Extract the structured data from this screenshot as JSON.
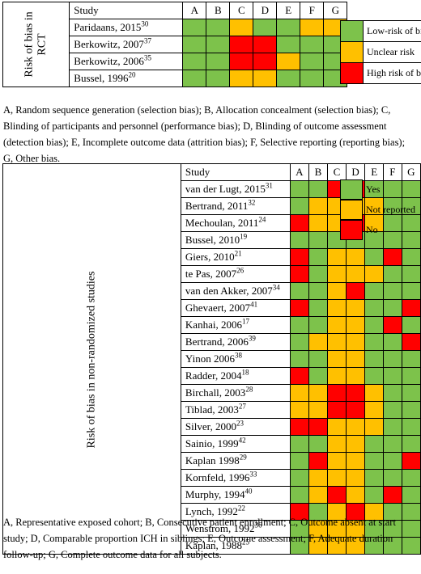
{
  "colors": {
    "green": "#7DC24B",
    "yellow": "#FFC000",
    "red": "#FF0000"
  },
  "rct": {
    "side_label_line1": "Risk of bias in",
    "side_label_line2": "RCT",
    "header": [
      "Study",
      "A",
      "B",
      "C",
      "D",
      "E",
      "F",
      "G"
    ],
    "rows": [
      {
        "study": "Paridaans, 2015",
        "ref": "30",
        "ratings": [
          "g",
          "g",
          "y",
          "g",
          "g",
          "y",
          "y"
        ]
      },
      {
        "study": "Berkowitz, 2007",
        "ref": "37",
        "ratings": [
          "g",
          "g",
          "r",
          "r",
          "g",
          "g",
          "g"
        ]
      },
      {
        "study": "Berkowitz, 2006",
        "ref": "35",
        "ratings": [
          "g",
          "g",
          "r",
          "r",
          "y",
          "g",
          "g"
        ]
      },
      {
        "study": "Bussel, 1996",
        "ref": "20",
        "ratings": [
          "g",
          "g",
          "y",
          "y",
          "g",
          "g",
          "g"
        ]
      }
    ],
    "legend": [
      {
        "label": "Low-risk of bias",
        "color": "g"
      },
      {
        "label": "Unclear risk",
        "color": "y"
      },
      {
        "label": "High risk of bias",
        "color": "r"
      }
    ],
    "caption": "A, Random sequence generation (selection bias); B, Allocation concealment (selection bias); C, Blinding of participants and personnel (performance bias); D, Blinding of outcome assessment (detection bias); E, Incomplete outcome data (attrition bias); F, Selective reporting (reporting bias); G, Other bias."
  },
  "nrs": {
    "side_label": "Risk of bias in non-randomized studies",
    "header": [
      "Study",
      "A",
      "B",
      "C",
      "D",
      "E",
      "F",
      "G"
    ],
    "rows": [
      {
        "study": "van der Lugt, 2015",
        "ref": "31",
        "ratings": [
          "g",
          "g",
          "r",
          "r",
          "g",
          "g",
          "g"
        ]
      },
      {
        "study": "Bertrand, 2011",
        "ref": "32",
        "ratings": [
          "g",
          "y",
          "y",
          "y",
          "y",
          "g",
          "g"
        ]
      },
      {
        "study": "Mechoulan, 2011",
        "ref": "24",
        "ratings": [
          "r",
          "y",
          "y",
          "r",
          "y",
          "g",
          "g"
        ]
      },
      {
        "study": "Bussel, 2010",
        "ref": "19",
        "ratings": [
          "g",
          "g",
          "g",
          "g",
          "g",
          "g",
          "g"
        ]
      },
      {
        "study": "Giers, 2010",
        "ref": "21",
        "ratings": [
          "r",
          "g",
          "y",
          "y",
          "g",
          "r",
          "g"
        ]
      },
      {
        "study": "te Pas, 2007",
        "ref": "26",
        "ratings": [
          "r",
          "g",
          "y",
          "y",
          "y",
          "g",
          "g"
        ]
      },
      {
        "study": "van den Akker, 2007",
        "ref": "34",
        "ratings": [
          "g",
          "g",
          "y",
          "r",
          "g",
          "g",
          "g"
        ]
      },
      {
        "study": "Ghevaert, 2007",
        "ref": "41",
        "ratings": [
          "r",
          "g",
          "y",
          "y",
          "g",
          "g",
          "r"
        ]
      },
      {
        "study": "Kanhai, 2006",
        "ref": "17",
        "ratings": [
          "g",
          "g",
          "y",
          "y",
          "g",
          "r",
          "g"
        ]
      },
      {
        "study": "Bertrand, 2006",
        "ref": "39",
        "ratings": [
          "g",
          "y",
          "y",
          "y",
          "g",
          "g",
          "r"
        ]
      },
      {
        "study": "Yinon 2006",
        "ref": "38",
        "ratings": [
          "g",
          "g",
          "y",
          "y",
          "g",
          "g",
          "g"
        ]
      },
      {
        "study": "Radder, 2004",
        "ref": "18",
        "ratings": [
          "r",
          "g",
          "y",
          "y",
          "g",
          "g",
          "g"
        ]
      },
      {
        "study": "Birchall, 2003",
        "ref": "28",
        "ratings": [
          "y",
          "y",
          "r",
          "r",
          "y",
          "g",
          "g"
        ]
      },
      {
        "study": "Tiblad, 2003",
        "ref": "27",
        "ratings": [
          "y",
          "y",
          "r",
          "r",
          "y",
          "g",
          "g"
        ]
      },
      {
        "study": "Silver, 2000",
        "ref": "23",
        "ratings": [
          "r",
          "r",
          "y",
          "y",
          "y",
          "g",
          "g"
        ]
      },
      {
        "study": "Sainio, 1999",
        "ref": "42",
        "ratings": [
          "g",
          "g",
          "y",
          "y",
          "g",
          "g",
          "g"
        ]
      },
      {
        "study": "Kaplan 1998",
        "ref": "29",
        "ratings": [
          "g",
          "r",
          "y",
          "y",
          "g",
          "g",
          "r"
        ]
      },
      {
        "study": "Kornfeld, 1996",
        "ref": "33",
        "ratings": [
          "g",
          "y",
          "y",
          "y",
          "g",
          "g",
          "g"
        ]
      },
      {
        "study": "Murphy, 1994",
        "ref": "40",
        "ratings": [
          "g",
          "y",
          "r",
          "y",
          "g",
          "r",
          "g"
        ]
      },
      {
        "study": "Lynch, 1992",
        "ref": "22",
        "ratings": [
          "r",
          "g",
          "y",
          "r",
          "y",
          "g",
          "g"
        ]
      },
      {
        "study": "Wenstrom, 1992",
        "ref": "36",
        "ratings": [
          "g",
          "y",
          "y",
          "y",
          "g",
          "g",
          "g"
        ]
      },
      {
        "study": "Kaplan, 1988",
        "ref": "25",
        "ratings": [
          "g",
          "y",
          "y",
          "y",
          "g",
          "g",
          "g"
        ]
      }
    ],
    "legend": [
      {
        "label": "Yes",
        "color": "g"
      },
      {
        "label": "Not reported",
        "color": "y"
      },
      {
        "label": "No",
        "color": "r"
      }
    ],
    "caption": "A, Representative exposed cohort; B, Consecutive patient enrollment; C, Outcome absent at start study; D, Comparable proportion ICH in siblings; E, Outcome assessment; F, Adequate duration follow-up; G, Complete outcome data for all subjects."
  }
}
